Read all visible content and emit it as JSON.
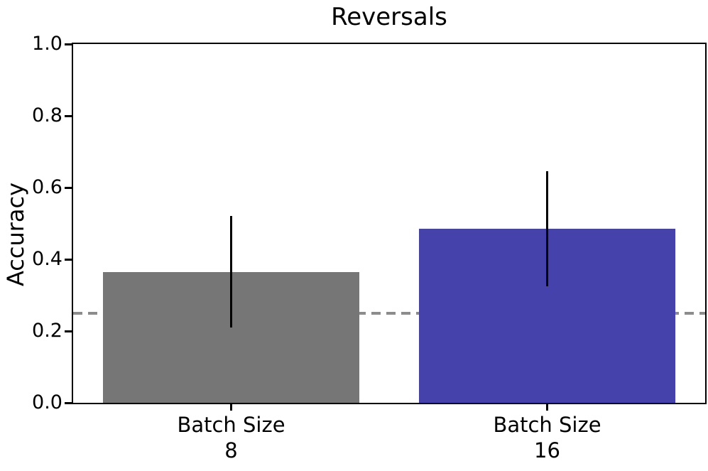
{
  "chart_data": {
    "type": "bar",
    "title": "Reversals",
    "xlabel": "",
    "ylabel": "Accuracy",
    "categories": [
      "Batch Size\n8",
      "Batch Size\n16"
    ],
    "values": [
      0.365,
      0.485
    ],
    "error_bars": [
      {
        "low": 0.21,
        "high": 0.52
      },
      {
        "low": 0.325,
        "high": 0.645
      }
    ],
    "bar_colors": [
      "#767676",
      "#4642ac"
    ],
    "error_bar_color": "#000000",
    "ylim": [
      0.0,
      1.0
    ],
    "yticks": [
      0.0,
      0.2,
      0.4,
      0.6,
      0.8,
      1.0
    ],
    "ytick_labels": [
      "0.0",
      "0.2",
      "0.4",
      "0.6",
      "0.8",
      "1.0"
    ],
    "reference_line": {
      "y": 0.25,
      "style": "dashed",
      "color": "#8c8c8c"
    },
    "grid": false,
    "legend": null,
    "bar_width_fraction": 0.81
  }
}
